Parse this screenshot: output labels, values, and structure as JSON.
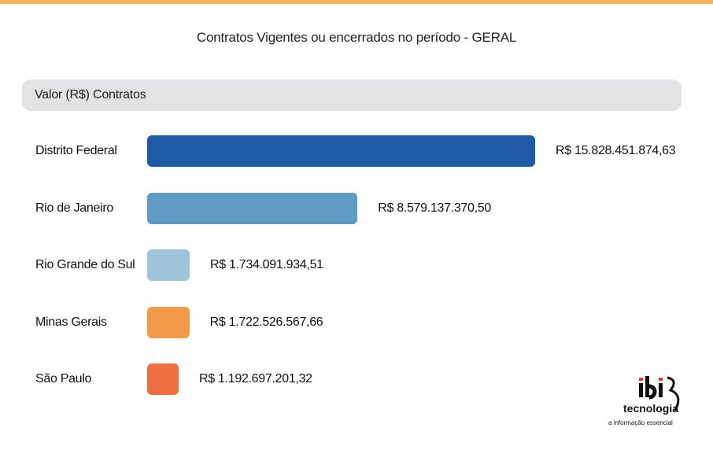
{
  "page": {
    "title": "Contratos Vigentes ou encerrados no período - GERAL"
  },
  "header": {
    "label": "Valor (R$) Contratos"
  },
  "chart_data": {
    "type": "bar",
    "orientation": "horizontal",
    "title": "Contratos Vigentes ou encerrados no período - GERAL",
    "ylabel": "Valor (R$) Contratos",
    "categories": [
      "Distrito Federal",
      "Rio de Janeiro",
      "Rio Grande do Sul",
      "Minas Gerais",
      "São Paulo"
    ],
    "values": [
      15828451874.63,
      8579137370.5,
      1734091934.51,
      1722526567.66,
      1192697201.32
    ],
    "value_labels": [
      "R$ 15.828.451.874,63",
      "R$ 8.579.137.370,50",
      "R$ 1.734.091.934,51",
      "R$ 1.722.526.567,66",
      "R$ 1.192.697.201,32"
    ],
    "colors": [
      "#1f5aa6",
      "#5f9bc3",
      "#9ec4dc",
      "#f39a4a",
      "#ef6f43"
    ]
  },
  "logo": {
    "mark": "ibi",
    "name": "tecnologia",
    "tagline": "a informação essencial",
    "accent_color": "#e4342b"
  }
}
